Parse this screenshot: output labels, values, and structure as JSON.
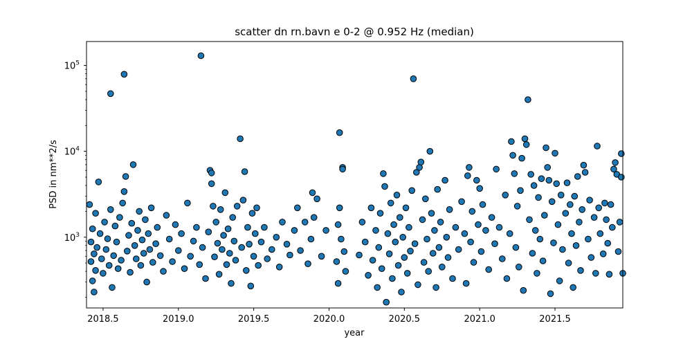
{
  "chart_data": {
    "type": "scatter",
    "title": "scatter dn rn.bavn e 0-2 @ 0.952 Hz (median)",
    "xlabel": "year",
    "ylabel": "PSD in nm**2/s",
    "xlim": [
      2018.39,
      2021.95
    ],
    "ylim": [
      150,
      190000
    ],
    "yscale": "log",
    "grid": false,
    "legend": "none",
    "x_ticks": [
      2018.5,
      2019.0,
      2019.5,
      2020.0,
      2020.5,
      2021.0,
      2021.5
    ],
    "x_tick_labels": [
      "2018.5",
      "2019.0",
      "2019.5",
      "2020.0",
      "2020.5",
      "2021.0",
      "2021.5"
    ],
    "y_ticks": [
      {
        "value": 1000,
        "base": "10",
        "exp": "3"
      },
      {
        "value": 10000,
        "base": "10",
        "exp": "4"
      },
      {
        "value": 100000,
        "base": "10",
        "exp": "5"
      }
    ],
    "marker": {
      "fill": "#1f77b4",
      "edge": "#000000"
    },
    "series": [
      {
        "points": [
          [
            2018.41,
            2400
          ],
          [
            2018.42,
            520
          ],
          [
            2018.42,
            880
          ],
          [
            2018.43,
            310
          ],
          [
            2018.43,
            1250
          ],
          [
            2018.44,
            640
          ],
          [
            2018.44,
            230
          ],
          [
            2018.45,
            1900
          ],
          [
            2018.45,
            410
          ],
          [
            2018.46,
            760
          ],
          [
            2018.47,
            4400
          ],
          [
            2018.48,
            1100
          ],
          [
            2018.49,
            560
          ],
          [
            2018.5,
            380
          ],
          [
            2018.51,
            1500
          ],
          [
            2018.52,
            720
          ],
          [
            2018.53,
            960
          ],
          [
            2018.54,
            470
          ],
          [
            2018.55,
            2100
          ],
          [
            2018.55,
            47000
          ],
          [
            2018.56,
            260
          ],
          [
            2018.57,
            610
          ],
          [
            2018.58,
            1350
          ],
          [
            2018.59,
            880
          ],
          [
            2018.6,
            430
          ],
          [
            2018.61,
            1700
          ],
          [
            2018.62,
            540
          ],
          [
            2018.63,
            2500
          ],
          [
            2018.64,
            79000
          ],
          [
            2018.64,
            3400
          ],
          [
            2018.65,
            5100
          ],
          [
            2018.66,
            690
          ],
          [
            2018.67,
            1050
          ],
          [
            2018.68,
            390
          ],
          [
            2018.69,
            1450
          ],
          [
            2018.7,
            7000
          ],
          [
            2018.71,
            800
          ],
          [
            2018.72,
            560
          ],
          [
            2018.73,
            1200
          ],
          [
            2018.74,
            2000
          ],
          [
            2018.75,
            470
          ],
          [
            2018.76,
            930
          ],
          [
            2018.77,
            650
          ],
          [
            2018.78,
            1600
          ],
          [
            2018.79,
            300
          ],
          [
            2018.8,
            1100
          ],
          [
            2018.81,
            720
          ],
          [
            2018.82,
            2200
          ],
          [
            2018.83,
            510
          ],
          [
            2018.85,
            840
          ],
          [
            2018.86,
            1300
          ],
          [
            2018.88,
            610
          ],
          [
            2018.9,
            400
          ],
          [
            2018.92,
            1800
          ],
          [
            2018.94,
            950
          ],
          [
            2018.96,
            520
          ],
          [
            2018.98,
            1400
          ],
          [
            2019.0,
            700
          ],
          [
            2019.02,
            1100
          ],
          [
            2019.04,
            430
          ],
          [
            2019.06,
            2500
          ],
          [
            2019.08,
            600
          ],
          [
            2019.1,
            900
          ],
          [
            2019.12,
            1300
          ],
          [
            2019.14,
            480
          ],
          [
            2019.15,
            130000
          ],
          [
            2019.16,
            760
          ],
          [
            2019.18,
            330
          ],
          [
            2019.2,
            1150
          ],
          [
            2019.21,
            6000
          ],
          [
            2019.22,
            5600
          ],
          [
            2019.22,
            4200
          ],
          [
            2019.23,
            2300
          ],
          [
            2019.24,
            590
          ],
          [
            2019.25,
            1500
          ],
          [
            2019.26,
            850
          ],
          [
            2019.27,
            370
          ],
          [
            2019.28,
            2100
          ],
          [
            2019.29,
            720
          ],
          [
            2019.3,
            1050
          ],
          [
            2019.31,
            3300
          ],
          [
            2019.32,
            480
          ],
          [
            2019.33,
            1250
          ],
          [
            2019.34,
            650
          ],
          [
            2019.35,
            290
          ],
          [
            2019.36,
            1700
          ],
          [
            2019.37,
            900
          ],
          [
            2019.38,
            540
          ],
          [
            2019.39,
            2300
          ],
          [
            2019.41,
            14000
          ],
          [
            2019.42,
            760
          ],
          [
            2019.43,
            2700
          ],
          [
            2019.44,
            5800
          ],
          [
            2019.45,
            410
          ],
          [
            2019.46,
            1300
          ],
          [
            2019.47,
            830
          ],
          [
            2019.48,
            270
          ],
          [
            2019.49,
            1900
          ],
          [
            2019.5,
            600
          ],
          [
            2019.51,
            1100
          ],
          [
            2019.52,
            2200
          ],
          [
            2019.53,
            470
          ],
          [
            2019.55,
            880
          ],
          [
            2019.57,
            1300
          ],
          [
            2019.59,
            560
          ],
          [
            2019.62,
            720
          ],
          [
            2019.65,
            1000
          ],
          [
            2019.67,
            450
          ],
          [
            2019.69,
            1500
          ],
          [
            2019.72,
            830
          ],
          [
            2019.74,
            620
          ],
          [
            2019.77,
            1200
          ],
          [
            2019.79,
            2200
          ],
          [
            2019.81,
            700
          ],
          [
            2019.84,
            1500
          ],
          [
            2019.86,
            490
          ],
          [
            2019.88,
            950
          ],
          [
            2019.89,
            3300
          ],
          [
            2019.9,
            1700
          ],
          [
            2019.92,
            2800
          ],
          [
            2019.95,
            600
          ],
          [
            2019.98,
            1200
          ],
          [
            2020.05,
            520
          ],
          [
            2020.06,
            290
          ],
          [
            2020.06,
            1400
          ],
          [
            2020.07,
            2200
          ],
          [
            2020.07,
            16500
          ],
          [
            2020.08,
            950
          ],
          [
            2020.09,
            6500
          ],
          [
            2020.09,
            6200
          ],
          [
            2020.1,
            680
          ],
          [
            2020.11,
            400
          ],
          [
            2020.2,
            620
          ],
          [
            2020.22,
            1500
          ],
          [
            2020.24,
            880
          ],
          [
            2020.26,
            360
          ],
          [
            2020.28,
            2200
          ],
          [
            2020.29,
            540
          ],
          [
            2020.31,
            1200
          ],
          [
            2020.32,
            260
          ],
          [
            2020.33,
            760
          ],
          [
            2020.34,
            1900
          ],
          [
            2020.35,
            430
          ],
          [
            2020.36,
            5500
          ],
          [
            2020.37,
            3900
          ],
          [
            2020.38,
            175
          ],
          [
            2020.39,
            1100
          ],
          [
            2020.4,
            640
          ],
          [
            2020.41,
            2500
          ],
          [
            2020.42,
            330
          ],
          [
            2020.43,
            1400
          ],
          [
            2020.44,
            880
          ],
          [
            2020.45,
            3100
          ],
          [
            2020.46,
            470
          ],
          [
            2020.47,
            1700
          ],
          [
            2020.48,
            230
          ],
          [
            2020.49,
            1000
          ],
          [
            2020.5,
            580
          ],
          [
            2020.51,
            2200
          ],
          [
            2020.52,
            380
          ],
          [
            2020.53,
            1300
          ],
          [
            2020.54,
            690
          ],
          [
            2020.55,
            3500
          ],
          [
            2020.56,
            70000
          ],
          [
            2020.57,
            840
          ],
          [
            2020.58,
            5700
          ],
          [
            2020.59,
            280
          ],
          [
            2020.6,
            6500
          ],
          [
            2020.61,
            7500
          ],
          [
            2020.62,
            1600
          ],
          [
            2020.63,
            510
          ],
          [
            2020.64,
            2800
          ],
          [
            2020.65,
            950
          ],
          [
            2020.66,
            400
          ],
          [
            2020.67,
            10000
          ],
          [
            2020.68,
            1900
          ],
          [
            2020.69,
            650
          ],
          [
            2020.7,
            1200
          ],
          [
            2020.71,
            260
          ],
          [
            2020.72,
            3600
          ],
          [
            2020.73,
            760
          ],
          [
            2020.74,
            1500
          ],
          [
            2020.75,
            450
          ],
          [
            2020.77,
            4600
          ],
          [
            2020.78,
            1000
          ],
          [
            2020.79,
            580
          ],
          [
            2020.8,
            2100
          ],
          [
            2020.82,
            330
          ],
          [
            2020.84,
            1300
          ],
          [
            2020.86,
            720
          ],
          [
            2020.88,
            2600
          ],
          [
            2020.9,
            1100
          ],
          [
            2020.91,
            290
          ],
          [
            2020.92,
            5200
          ],
          [
            2020.93,
            6500
          ],
          [
            2020.94,
            880
          ],
          [
            2020.95,
            2000
          ],
          [
            2020.96,
            510
          ],
          [
            2020.98,
            4600
          ],
          [
            2020.99,
            1400
          ],
          [
            2021.0,
            3700
          ],
          [
            2021.01,
            680
          ],
          [
            2021.02,
            2400
          ],
          [
            2021.04,
            1200
          ],
          [
            2021.06,
            420
          ],
          [
            2021.08,
            1700
          ],
          [
            2021.1,
            840
          ],
          [
            2021.11,
            6200
          ],
          [
            2021.13,
            1300
          ],
          [
            2021.15,
            560
          ],
          [
            2021.17,
            3100
          ],
          [
            2021.18,
            330
          ],
          [
            2021.2,
            1100
          ],
          [
            2021.21,
            13000
          ],
          [
            2021.22,
            9000
          ],
          [
            2021.23,
            5500
          ],
          [
            2021.24,
            760
          ],
          [
            2021.25,
            2300
          ],
          [
            2021.26,
            450
          ],
          [
            2021.27,
            3500
          ],
          [
            2021.28,
            8300
          ],
          [
            2021.29,
            240
          ],
          [
            2021.3,
            14000
          ],
          [
            2021.31,
            12000
          ],
          [
            2021.32,
            40000
          ],
          [
            2021.33,
            1600
          ],
          [
            2021.34,
            5400
          ],
          [
            2021.35,
            650
          ],
          [
            2021.36,
            4000
          ],
          [
            2021.37,
            1200
          ],
          [
            2021.38,
            380
          ],
          [
            2021.39,
            2900
          ],
          [
            2021.4,
            950
          ],
          [
            2021.41,
            4800
          ],
          [
            2021.42,
            530
          ],
          [
            2021.43,
            1800
          ],
          [
            2021.44,
            11000
          ],
          [
            2021.45,
            6500
          ],
          [
            2021.46,
            4600
          ],
          [
            2021.47,
            220
          ],
          [
            2021.48,
            2600
          ],
          [
            2021.49,
            860
          ],
          [
            2021.5,
            9500
          ],
          [
            2021.51,
            4200
          ],
          [
            2021.52,
            1400
          ],
          [
            2021.53,
            310
          ],
          [
            2021.54,
            3100
          ],
          [
            2021.55,
            720
          ],
          [
            2021.57,
            1900
          ],
          [
            2021.58,
            4300
          ],
          [
            2021.59,
            500
          ],
          [
            2021.6,
            2400
          ],
          [
            2021.61,
            1100
          ],
          [
            2021.62,
            260
          ],
          [
            2021.63,
            3000
          ],
          [
            2021.64,
            800
          ],
          [
            2021.65,
            5100
          ],
          [
            2021.66,
            1500
          ],
          [
            2021.67,
            410
          ],
          [
            2021.68,
            2100
          ],
          [
            2021.69,
            6900
          ],
          [
            2021.7,
            5700
          ],
          [
            2021.72,
            950
          ],
          [
            2021.73,
            2700
          ],
          [
            2021.74,
            580
          ],
          [
            2021.76,
            1700
          ],
          [
            2021.77,
            380
          ],
          [
            2021.78,
            11500
          ],
          [
            2021.79,
            2200
          ],
          [
            2021.8,
            1100
          ],
          [
            2021.82,
            640
          ],
          [
            2021.83,
            2500
          ],
          [
            2021.84,
            1600
          ],
          [
            2021.85,
            850
          ],
          [
            2021.86,
            370
          ],
          [
            2021.87,
            2400
          ],
          [
            2021.88,
            1300
          ],
          [
            2021.89,
            6200
          ],
          [
            2021.9,
            7400
          ],
          [
            2021.91,
            5400
          ],
          [
            2021.92,
            680
          ],
          [
            2021.93,
            1500
          ],
          [
            2021.94,
            9400
          ],
          [
            2021.94,
            5000
          ],
          [
            2021.95,
            380
          ]
        ]
      }
    ]
  }
}
